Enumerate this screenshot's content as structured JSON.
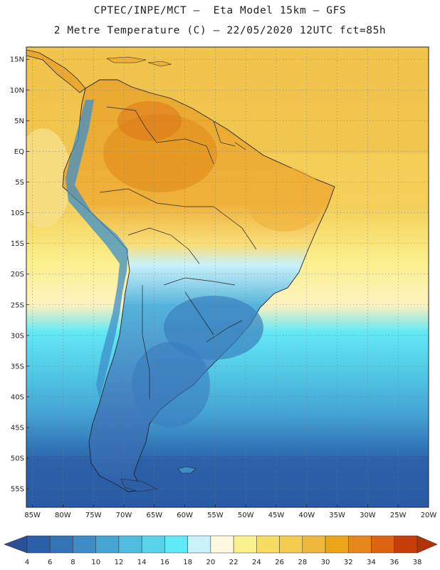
{
  "title_line1": "CPTEC/INPE/MCT –  Eta Model 15km – GFS",
  "title_line2": "2 Metre Temperature (C) – 22/05/2020 12UTC fct=85h",
  "lat_labels": [
    {
      "value": 15,
      "text": "15N"
    },
    {
      "value": 10,
      "text": "10N"
    },
    {
      "value": 5,
      "text": "5N"
    },
    {
      "value": 0,
      "text": "EQ"
    },
    {
      "value": -5,
      "text": "5S"
    },
    {
      "value": -10,
      "text": "10S"
    },
    {
      "value": -15,
      "text": "15S"
    },
    {
      "value": -20,
      "text": "20S"
    },
    {
      "value": -25,
      "text": "25S"
    },
    {
      "value": -30,
      "text": "30S"
    },
    {
      "value": -35,
      "text": "35S"
    },
    {
      "value": -40,
      "text": "40S"
    },
    {
      "value": -45,
      "text": "45S"
    },
    {
      "value": -50,
      "text": "50S"
    },
    {
      "value": -55,
      "text": "55S"
    }
  ],
  "lon_labels": [
    {
      "value": -85,
      "text": "85W"
    },
    {
      "value": -80,
      "text": "80W"
    },
    {
      "value": -75,
      "text": "75W"
    },
    {
      "value": -70,
      "text": "70W"
    },
    {
      "value": -65,
      "text": "65W"
    },
    {
      "value": -60,
      "text": "60W"
    },
    {
      "value": -55,
      "text": "55W"
    },
    {
      "value": -50,
      "text": "50W"
    },
    {
      "value": -45,
      "text": "45W"
    },
    {
      "value": -40,
      "text": "40W"
    },
    {
      "value": -35,
      "text": "35W"
    },
    {
      "value": -30,
      "text": "30W"
    },
    {
      "value": -25,
      "text": "25W"
    },
    {
      "value": -20,
      "text": "20W"
    }
  ],
  "colorbar": {
    "labels": [
      "4",
      "6",
      "8",
      "10",
      "12",
      "14",
      "16",
      "18",
      "20",
      "22",
      "24",
      "26",
      "28",
      "30",
      "32",
      "34",
      "36",
      "38"
    ],
    "colors": [
      "#2b5fa8",
      "#3474b6",
      "#3d8cc6",
      "#47a5d4",
      "#50bcdf",
      "#58d3ea",
      "#61e9f6",
      "#c8f1fb",
      "#fdf8df",
      "#fbf08e",
      "#f8dc62",
      "#f4cc52",
      "#eeb83c",
      "#eba51b",
      "#e7871c",
      "#dd6410",
      "#c63f0b"
    ],
    "under_color": "#2a4f97",
    "over_color": "#b3320a"
  },
  "legend_temperatures": {
    "ocean_north": 28,
    "ocean_south_mid": 22,
    "ocean_far_south": 8,
    "amazon": 31,
    "andes": 12,
    "patagonia": 8
  }
}
